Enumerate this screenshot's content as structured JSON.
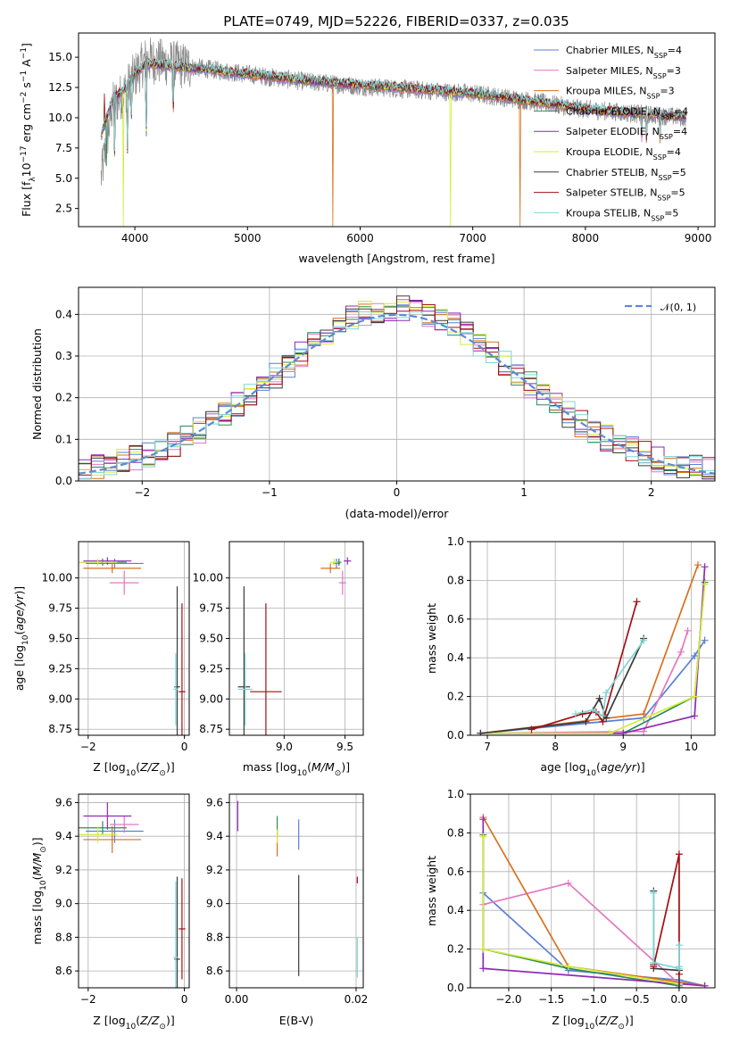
{
  "figure": {
    "title": "PLATE=0749, MJD=52226, FIBERID=0337, z=0.035"
  },
  "colors": {
    "Chabrier MILES": "#5b7fd6",
    "Salpeter MILES": "#e377c2",
    "Kroupa MILES": "#d9701e",
    "Chabrier ELODIE": "#2e8b57",
    "Salpeter ELODIE": "#8e2ab4",
    "Kroupa ELODIE": "#d4ec3a",
    "Chabrier STELIB": "#3a3a3a",
    "Salpeter STELIB": "#a00f14",
    "Kroupa STELIB": "#7fd6d6"
  },
  "legend": [
    {
      "base": "Chabrier MILES, N",
      "sub": "SSP",
      "tail": "=4"
    },
    {
      "base": "Salpeter MILES, N",
      "sub": "SSP",
      "tail": "=3"
    },
    {
      "base": "Kroupa MILES, N",
      "sub": "SSP",
      "tail": "=3"
    },
    {
      "base": "Chabrier ELODIE, N",
      "sub": "SSP",
      "tail": "=4"
    },
    {
      "base": "Salpeter ELODIE, N",
      "sub": "SSP",
      "tail": "=4"
    },
    {
      "base": "Kroupa ELODIE, N",
      "sub": "SSP",
      "tail": "=4"
    },
    {
      "base": "Chabrier STELIB, N",
      "sub": "SSP",
      "tail": "=5"
    },
    {
      "base": "Salpeter STELIB, N",
      "sub": "SSP",
      "tail": "=5"
    },
    {
      "base": "Kroupa STELIB, N",
      "sub": "SSP",
      "tail": "=5"
    }
  ],
  "chart_data": [
    {
      "type": "line",
      "panel": "spectrum",
      "xlabel": "wavelength [Angstrom, rest frame]",
      "ylabel": "Flux [f_λ 10^-17 erg cm^-2 s^-1 A^-1]",
      "xlim": [
        3500,
        9150
      ],
      "ylim": [
        1,
        17
      ],
      "xticks": [
        4000,
        5000,
        6000,
        7000,
        8000,
        9000
      ],
      "yticks": [
        2.5,
        5.0,
        7.5,
        10.0,
        12.5,
        15.0
      ],
      "data_series": {
        "name": "data",
        "x": [
          3700,
          3800,
          3900,
          4000,
          4100,
          4300,
          4500,
          5000,
          5500,
          6000,
          6500,
          7000,
          7500,
          8000,
          8500,
          8900
        ],
        "y": [
          5.0,
          11.0,
          12.0,
          13.5,
          14.8,
          14.5,
          14.2,
          13.6,
          13.0,
          12.6,
          12.3,
          12.0,
          11.4,
          10.7,
          10.3,
          10.0
        ]
      },
      "model_mean": {
        "x": [
          3700,
          3800,
          3900,
          4000,
          4100,
          4300,
          4500,
          5000,
          5500,
          6000,
          6500,
          7000,
          7500,
          8000,
          8500,
          8900
        ],
        "y": [
          8.5,
          11.5,
          12.3,
          13.6,
          14.5,
          14.3,
          14.1,
          13.6,
          13.1,
          12.7,
          12.4,
          12.0,
          11.4,
          10.7,
          10.3,
          10.1
        ]
      }
    },
    {
      "type": "line",
      "panel": "residual-histogram",
      "xlabel": "(data-model)/error",
      "ylabel": "Normed distribution",
      "xlim": [
        -2.5,
        2.5
      ],
      "ylim": [
        0,
        0.465
      ],
      "xticks": [
        -2,
        -1,
        0,
        1,
        2
      ],
      "yticks": [
        0.0,
        0.1,
        0.2,
        0.3,
        0.4
      ],
      "legend_label": "𝒩(0, 1)",
      "gaussian": {
        "mean": 0,
        "sigma": 1
      }
    },
    {
      "type": "scatter",
      "panel": "age-vs-Z",
      "xlabel": "Z [log10(Z/Z⊙)]",
      "ylabel": "age  [log10(age/yr)]",
      "xlim": [
        -2.2,
        0.1
      ],
      "ylim": [
        8.7,
        10.3
      ],
      "xticks": [
        -2,
        0
      ],
      "yticks": [
        8.75,
        9.0,
        9.25,
        9.5,
        9.75,
        10.0
      ],
      "points": [
        {
          "model": "Chabrier MILES",
          "x": -1.45,
          "y": 10.12,
          "xerr": 0.6,
          "yerr": 0.04
        },
        {
          "model": "Salpeter MILES",
          "x": -1.25,
          "y": 9.96,
          "xerr": 0.3,
          "yerr": 0.1
        },
        {
          "model": "Kroupa MILES",
          "x": -1.5,
          "y": 10.08,
          "xerr": 0.6,
          "yerr": 0.04
        },
        {
          "model": "Chabrier ELODIE",
          "x": -1.7,
          "y": 10.13,
          "xerr": 0.5,
          "yerr": 0.03
        },
        {
          "model": "Salpeter ELODIE",
          "x": -1.6,
          "y": 10.14,
          "xerr": 0.5,
          "yerr": 0.03
        },
        {
          "model": "Kroupa ELODIE",
          "x": -1.8,
          "y": 10.13,
          "xerr": 0.4,
          "yerr": 0.03
        },
        {
          "model": "Chabrier STELIB",
          "x": -0.15,
          "y": 9.1,
          "xerr": 0.06,
          "yerr": 0.83
        },
        {
          "model": "Salpeter STELIB",
          "x": -0.05,
          "y": 9.06,
          "xerr": 0.07,
          "yerr": 0.73
        },
        {
          "model": "Kroupa STELIB",
          "x": -0.18,
          "y": 9.08,
          "xerr": 0.05,
          "yerr": 0.3
        }
      ]
    },
    {
      "type": "scatter",
      "panel": "age-vs-mass",
      "xlabel": "mass [log10(M/M⊙)]",
      "ylabel": "",
      "xlim": [
        8.55,
        9.65
      ],
      "ylim": [
        8.7,
        10.3
      ],
      "xticks": [
        9.0,
        9.5
      ],
      "yticks": [
        8.75,
        9.0,
        9.25,
        9.5,
        9.75,
        10.0
      ],
      "points": [
        {
          "model": "Chabrier MILES",
          "x": 9.43,
          "y": 10.12,
          "xerr": 0.03,
          "yerr": 0.04
        },
        {
          "model": "Salpeter MILES",
          "x": 9.48,
          "y": 9.96,
          "xerr": 0.03,
          "yerr": 0.1
        },
        {
          "model": "Kroupa MILES",
          "x": 9.38,
          "y": 10.08,
          "xerr": 0.08,
          "yerr": 0.04
        },
        {
          "model": "Chabrier ELODIE",
          "x": 9.45,
          "y": 10.13,
          "xerr": 0.02,
          "yerr": 0.03
        },
        {
          "model": "Salpeter ELODIE",
          "x": 9.52,
          "y": 10.14,
          "xerr": 0.03,
          "yerr": 0.03
        },
        {
          "model": "Kroupa ELODIE",
          "x": 9.41,
          "y": 10.13,
          "xerr": 0.03,
          "yerr": 0.03
        },
        {
          "model": "Chabrier STELIB",
          "x": 8.67,
          "y": 9.1,
          "xerr": 0.05,
          "yerr": 0.83
        },
        {
          "model": "Salpeter STELIB",
          "x": 8.85,
          "y": 9.06,
          "xerr": 0.13,
          "yerr": 0.73
        },
        {
          "model": "Kroupa STELIB",
          "x": 8.68,
          "y": 9.08,
          "xerr": 0.06,
          "yerr": 0.3
        }
      ]
    },
    {
      "type": "line",
      "panel": "mass-weight-vs-age",
      "xlabel": "age  [log10(age/yr)]",
      "ylabel": "mass weight",
      "xlim": [
        6.75,
        10.35
      ],
      "ylim": [
        0,
        1.0
      ],
      "xticks": [
        7,
        8,
        9,
        10
      ],
      "yticks": [
        0.0,
        0.2,
        0.4,
        0.6,
        0.8,
        1.0
      ],
      "series": [
        {
          "model": "Chabrier MILES",
          "x": [
            6.9,
            9.3,
            10.05,
            10.2
          ],
          "y": [
            0.01,
            0.09,
            0.41,
            0.49
          ]
        },
        {
          "model": "Salpeter MILES",
          "x": [
            6.9,
            9.3,
            9.85,
            9.95
          ],
          "y": [
            0.01,
            0.02,
            0.43,
            0.54
          ]
        },
        {
          "model": "Kroupa MILES",
          "x": [
            6.9,
            9.3,
            10.1
          ],
          "y": [
            0.01,
            0.11,
            0.88
          ]
        },
        {
          "model": "Chabrier ELODIE",
          "x": [
            6.9,
            9.0,
            10.05,
            10.2
          ],
          "y": [
            0.01,
            0.01,
            0.2,
            0.79
          ]
        },
        {
          "model": "Salpeter ELODIE",
          "x": [
            6.9,
            9.0,
            10.05,
            10.2
          ],
          "y": [
            0.01,
            0.01,
            0.1,
            0.87
          ]
        },
        {
          "model": "Kroupa ELODIE",
          "x": [
            6.9,
            8.8,
            10.05,
            10.2
          ],
          "y": [
            0.01,
            0.01,
            0.2,
            0.78
          ]
        },
        {
          "model": "Chabrier STELIB",
          "x": [
            6.9,
            8.45,
            8.65,
            8.75,
            9.3
          ],
          "y": [
            0.01,
            0.07,
            0.19,
            0.09,
            0.5
          ]
        },
        {
          "model": "Salpeter STELIB",
          "x": [
            7.65,
            8.4,
            8.6,
            8.7,
            9.2
          ],
          "y": [
            0.03,
            0.11,
            0.12,
            0.07,
            0.69
          ]
        },
        {
          "model": "Kroupa STELIB",
          "x": [
            8.3,
            8.55,
            8.7,
            8.75,
            9.3
          ],
          "y": [
            0.11,
            0.13,
            0.1,
            0.22,
            0.49
          ]
        }
      ]
    },
    {
      "type": "scatter",
      "panel": "mass-vs-Z",
      "xlabel": "Z [log10(Z/Z⊙)]",
      "ylabel": "mass [log10(M/M⊙)]",
      "xlim": [
        -2.2,
        0.1
      ],
      "ylim": [
        8.5,
        9.65
      ],
      "xticks": [
        -2,
        0
      ],
      "yticks": [
        8.6,
        8.8,
        9.0,
        9.2,
        9.4,
        9.6
      ],
      "points": [
        {
          "model": "Chabrier MILES",
          "x": -1.45,
          "y": 9.43,
          "xerr": 0.6,
          "yerr": 0.07
        },
        {
          "model": "Salpeter MILES",
          "x": -1.25,
          "y": 9.47,
          "xerr": 0.3,
          "yerr": 0.05
        },
        {
          "model": "Kroupa MILES",
          "x": -1.5,
          "y": 9.38,
          "xerr": 0.6,
          "yerr": 0.08
        },
        {
          "model": "Chabrier ELODIE",
          "x": -1.7,
          "y": 9.45,
          "xerr": 0.5,
          "yerr": 0.04
        },
        {
          "model": "Salpeter ELODIE",
          "x": -1.6,
          "y": 9.52,
          "xerr": 0.5,
          "yerr": 0.08
        },
        {
          "model": "Kroupa ELODIE",
          "x": -1.8,
          "y": 9.41,
          "xerr": 0.4,
          "yerr": 0.05
        },
        {
          "model": "Chabrier STELIB",
          "x": -0.15,
          "y": 8.67,
          "xerr": 0.06,
          "yerr": 0.49
        },
        {
          "model": "Salpeter STELIB",
          "x": -0.05,
          "y": 8.85,
          "xerr": 0.07,
          "yerr": 0.3
        },
        {
          "model": "Kroupa STELIB",
          "x": -0.18,
          "y": 8.68,
          "xerr": 0.05,
          "yerr": 0.45
        }
      ]
    },
    {
      "type": "scatter",
      "panel": "mass-vs-EBV",
      "xlabel": "E(B-V)",
      "ylabel": "",
      "xlim": [
        -0.0012,
        0.0212
      ],
      "ylim": [
        8.5,
        9.65
      ],
      "xticks": [
        0.0,
        0.02
      ],
      "yticks": [
        8.6,
        8.8,
        9.0,
        9.2,
        9.4,
        9.6
      ],
      "points": [
        {
          "model": "Chabrier MILES",
          "x": 0.0104,
          "y": 9.41,
          "xerr": 0,
          "yerr": 0.09
        },
        {
          "model": "Kroupa MILES",
          "x": 0.0068,
          "y": 9.36,
          "xerr": 0,
          "yerr": 0.08
        },
        {
          "model": "Chabrier ELODIE",
          "x": 0.0068,
          "y": 9.46,
          "xerr": 0,
          "yerr": 0.06
        },
        {
          "model": "Salpeter ELODIE",
          "x": 0.0002,
          "y": 9.52,
          "xerr": 0,
          "yerr": 0.09
        },
        {
          "model": "Kroupa ELODIE",
          "x": 0.0068,
          "y": 9.4,
          "xerr": 0,
          "yerr": 0.04
        },
        {
          "model": "Chabrier STELIB",
          "x": 0.0104,
          "y": 8.87,
          "xerr": 0,
          "yerr": 0.3
        },
        {
          "model": "Salpeter STELIB",
          "x": 0.0202,
          "y": 9.14,
          "xerr": 0,
          "yerr": 0.02
        },
        {
          "model": "Kroupa STELIB",
          "x": 0.0202,
          "y": 8.68,
          "xerr": 0,
          "yerr": 0.12
        }
      ]
    },
    {
      "type": "line",
      "panel": "mass-weight-vs-Z",
      "xlabel": "Z [log10(Z/Z⊙)]",
      "ylabel": "mass weight",
      "xlim": [
        -2.45,
        0.42
      ],
      "ylim": [
        0,
        1.0
      ],
      "xticks": [
        -2.0,
        -1.5,
        -1.0,
        -0.5,
        0.0
      ],
      "yticks": [
        0.0,
        0.2,
        0.4,
        0.6,
        0.8,
        1.0
      ],
      "series": [
        {
          "model": "Chabrier MILES",
          "x": [
            -2.3,
            -1.3,
            0.0,
            0.3
          ],
          "y": [
            0.49,
            0.09,
            0.04,
            0.01
          ]
        },
        {
          "model": "Salpeter MILES",
          "x": [
            -2.3,
            -1.3,
            0.0
          ],
          "y": [
            0.43,
            0.54,
            0.02
          ]
        },
        {
          "model": "Kroupa MILES",
          "x": [
            -2.3,
            -1.3,
            0.3
          ],
          "y": [
            0.88,
            0.11,
            0.01
          ]
        },
        {
          "model": "Chabrier ELODIE",
          "x": [
            -2.3,
            -2.3,
            -1.3,
            0.0
          ],
          "y": [
            0.79,
            0.2,
            0.1,
            0.01
          ]
        },
        {
          "model": "Salpeter ELODIE",
          "x": [
            -2.3,
            -2.3,
            0.3
          ],
          "y": [
            0.87,
            0.1,
            0.01
          ]
        },
        {
          "model": "Kroupa ELODIE",
          "x": [
            -2.3,
            -2.3,
            -1.3,
            0.0
          ],
          "y": [
            0.78,
            0.2,
            0.11,
            0.02
          ]
        },
        {
          "model": "Chabrier STELIB",
          "x": [
            -0.3,
            -0.3,
            0.0,
            0.0
          ],
          "y": [
            0.5,
            0.1,
            0.09,
            0.0
          ]
        },
        {
          "model": "Salpeter STELIB",
          "x": [
            -0.3,
            -0.3,
            0.0,
            0.0
          ],
          "y": [
            0.12,
            0.11,
            0.69,
            0.07
          ]
        },
        {
          "model": "Kroupa STELIB",
          "x": [
            -0.3,
            -0.3,
            0.0,
            0.0,
            0.0
          ],
          "y": [
            0.49,
            0.13,
            0.1,
            0.22,
            0.11
          ]
        }
      ]
    }
  ]
}
